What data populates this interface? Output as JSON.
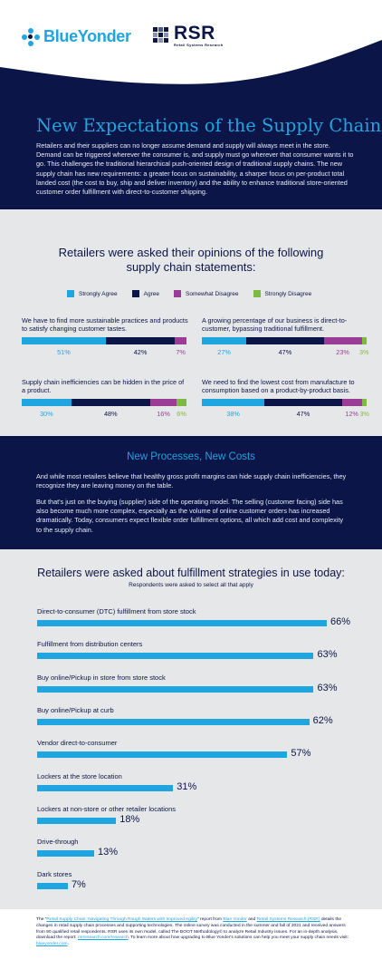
{
  "colors": {
    "navy": "#0c1547",
    "cyan": "#1fa5e0",
    "purple": "#9a3d97",
    "green": "#7dba42",
    "gray_bg": "#e6e7e8"
  },
  "header": {
    "logo_blueyonder": "BlueYonder",
    "logo_rsr": "RSR",
    "logo_rsr_sub": "Retail Systems Research",
    "title": "New Expectations of the Supply Chain",
    "body": "Retailers and their suppliers can no longer assume demand and supply will always meet in the store. Demand can be triggered wherever the consumer is, and supply must go wherever that consumer wants it to go. This challenges the traditional hierarchical push-oriented design of traditional supply chains. The new supply chain has new requirements: a greater focus on sustainability, a sharper focus on per-product total landed cost (the cost to buy, ship and deliver inventory) and the ability to enhance traditional store-oriented customer order fulfillment with direct-to-customer shipping."
  },
  "opinions": {
    "title_line1": "Retailers were asked their opinions of the following",
    "title_line2": "supply chain statements:",
    "legend": [
      "Strongly Agree",
      "Agree",
      "Somewhat Disagree",
      "Strongly Disagree"
    ]
  },
  "fulfillment": {
    "title": "Retailers were asked about fulfillment strategies in use today:",
    "subtitle": "Respondents were asked to select all that apply"
  },
  "processes": {
    "title": "New Processes, New Costs",
    "p1": "And while most retailers believe that healthy gross profit margins can hide supply chain inefficiencies, they recognize they are leaving money on the table.",
    "p2": "But that's just on the buying (supplier) side of the operating model. The selling (customer facing) side has also become much more complex, especially as the volume of online customer orders has increased dramatically. Today, consumers expect flexible order fulfillment options, all which add cost and complexity to the supply chain."
  },
  "footer": {
    "t1": "The “",
    "link_report": "Retail Supply Chain: Navigating Through Rough Waters with Improved Agility",
    "t2": "” report  from ",
    "link_by": "Blue Yonder",
    "t3": " and ",
    "link_rsr": "Retail Systems Research (RSR)",
    "t4": " details the changes in retail supply chain processes and supporting technologies. The online survey was conducted in the summer and fall of 2021 and received answers from 90 qualified retail respondents. RSR uses its own model, called The BOOT Methodology© to analyze Retail Industry issues. For an in-depth analysis, download the report: ",
    "link_site": "rsrresearch.com/research",
    "t5": ". To learn more about how upgrading to Blue Yonder's solutions can help you meet your supply chain needs visit: ",
    "link_by_site": "blueyonder.com",
    "t6": "."
  },
  "chart_data": [
    {
      "type": "bar",
      "stacked": true,
      "orientation": "horizontal",
      "series_names": [
        "Strongly Agree",
        "Agree",
        "Somewhat Disagree",
        "Strongly Disagree"
      ],
      "series_colors": [
        "#1fa5e0",
        "#0c1547",
        "#9a3d97",
        "#7dba42"
      ],
      "items": [
        {
          "statement": "We have to find more sustainable practices and products to satisfy changing customer tastes.",
          "values": [
            51,
            42,
            7,
            0
          ],
          "labels": [
            "51%",
            "42%",
            "7%",
            ""
          ]
        },
        {
          "statement": "A growing percentage of our business is direct-to-customer, bypassing traditional fulfillment.",
          "values": [
            27,
            47,
            23,
            3
          ],
          "labels": [
            "27%",
            "47%",
            "23%",
            "3%"
          ]
        },
        {
          "statement": "Supply chain inefficiencies can be hidden in the price of a product.",
          "values": [
            30,
            48,
            16,
            6
          ],
          "labels": [
            "30%",
            "48%",
            "16%",
            "6%"
          ]
        },
        {
          "statement": "We need to find the lowest cost from manufacture to consumption based on a product-by-product basis.",
          "values": [
            38,
            47,
            12,
            3
          ],
          "labels": [
            "38%",
            "47%",
            "12%",
            "3%"
          ]
        }
      ]
    },
    {
      "type": "bar",
      "orientation": "horizontal",
      "categories": [
        "Direct-to-consumer (DTC) fulfillment from store stock",
        "Fulfillment from distribution centers",
        "Buy online/Pickup in store from store stock",
        "Buy online/Pickup at curb",
        "Vendor direct-to-consumer",
        "Lockers at the store location",
        "Lockers at non-store or other retailer locations",
        "Drive-through",
        "Dark stores"
      ],
      "values": [
        66,
        63,
        63,
        62,
        57,
        31,
        18,
        13,
        7
      ],
      "value_labels": [
        "66%",
        "63%",
        "63%",
        "62%",
        "57%",
        "31%",
        "18%",
        "13%",
        "7%"
      ]
    }
  ]
}
